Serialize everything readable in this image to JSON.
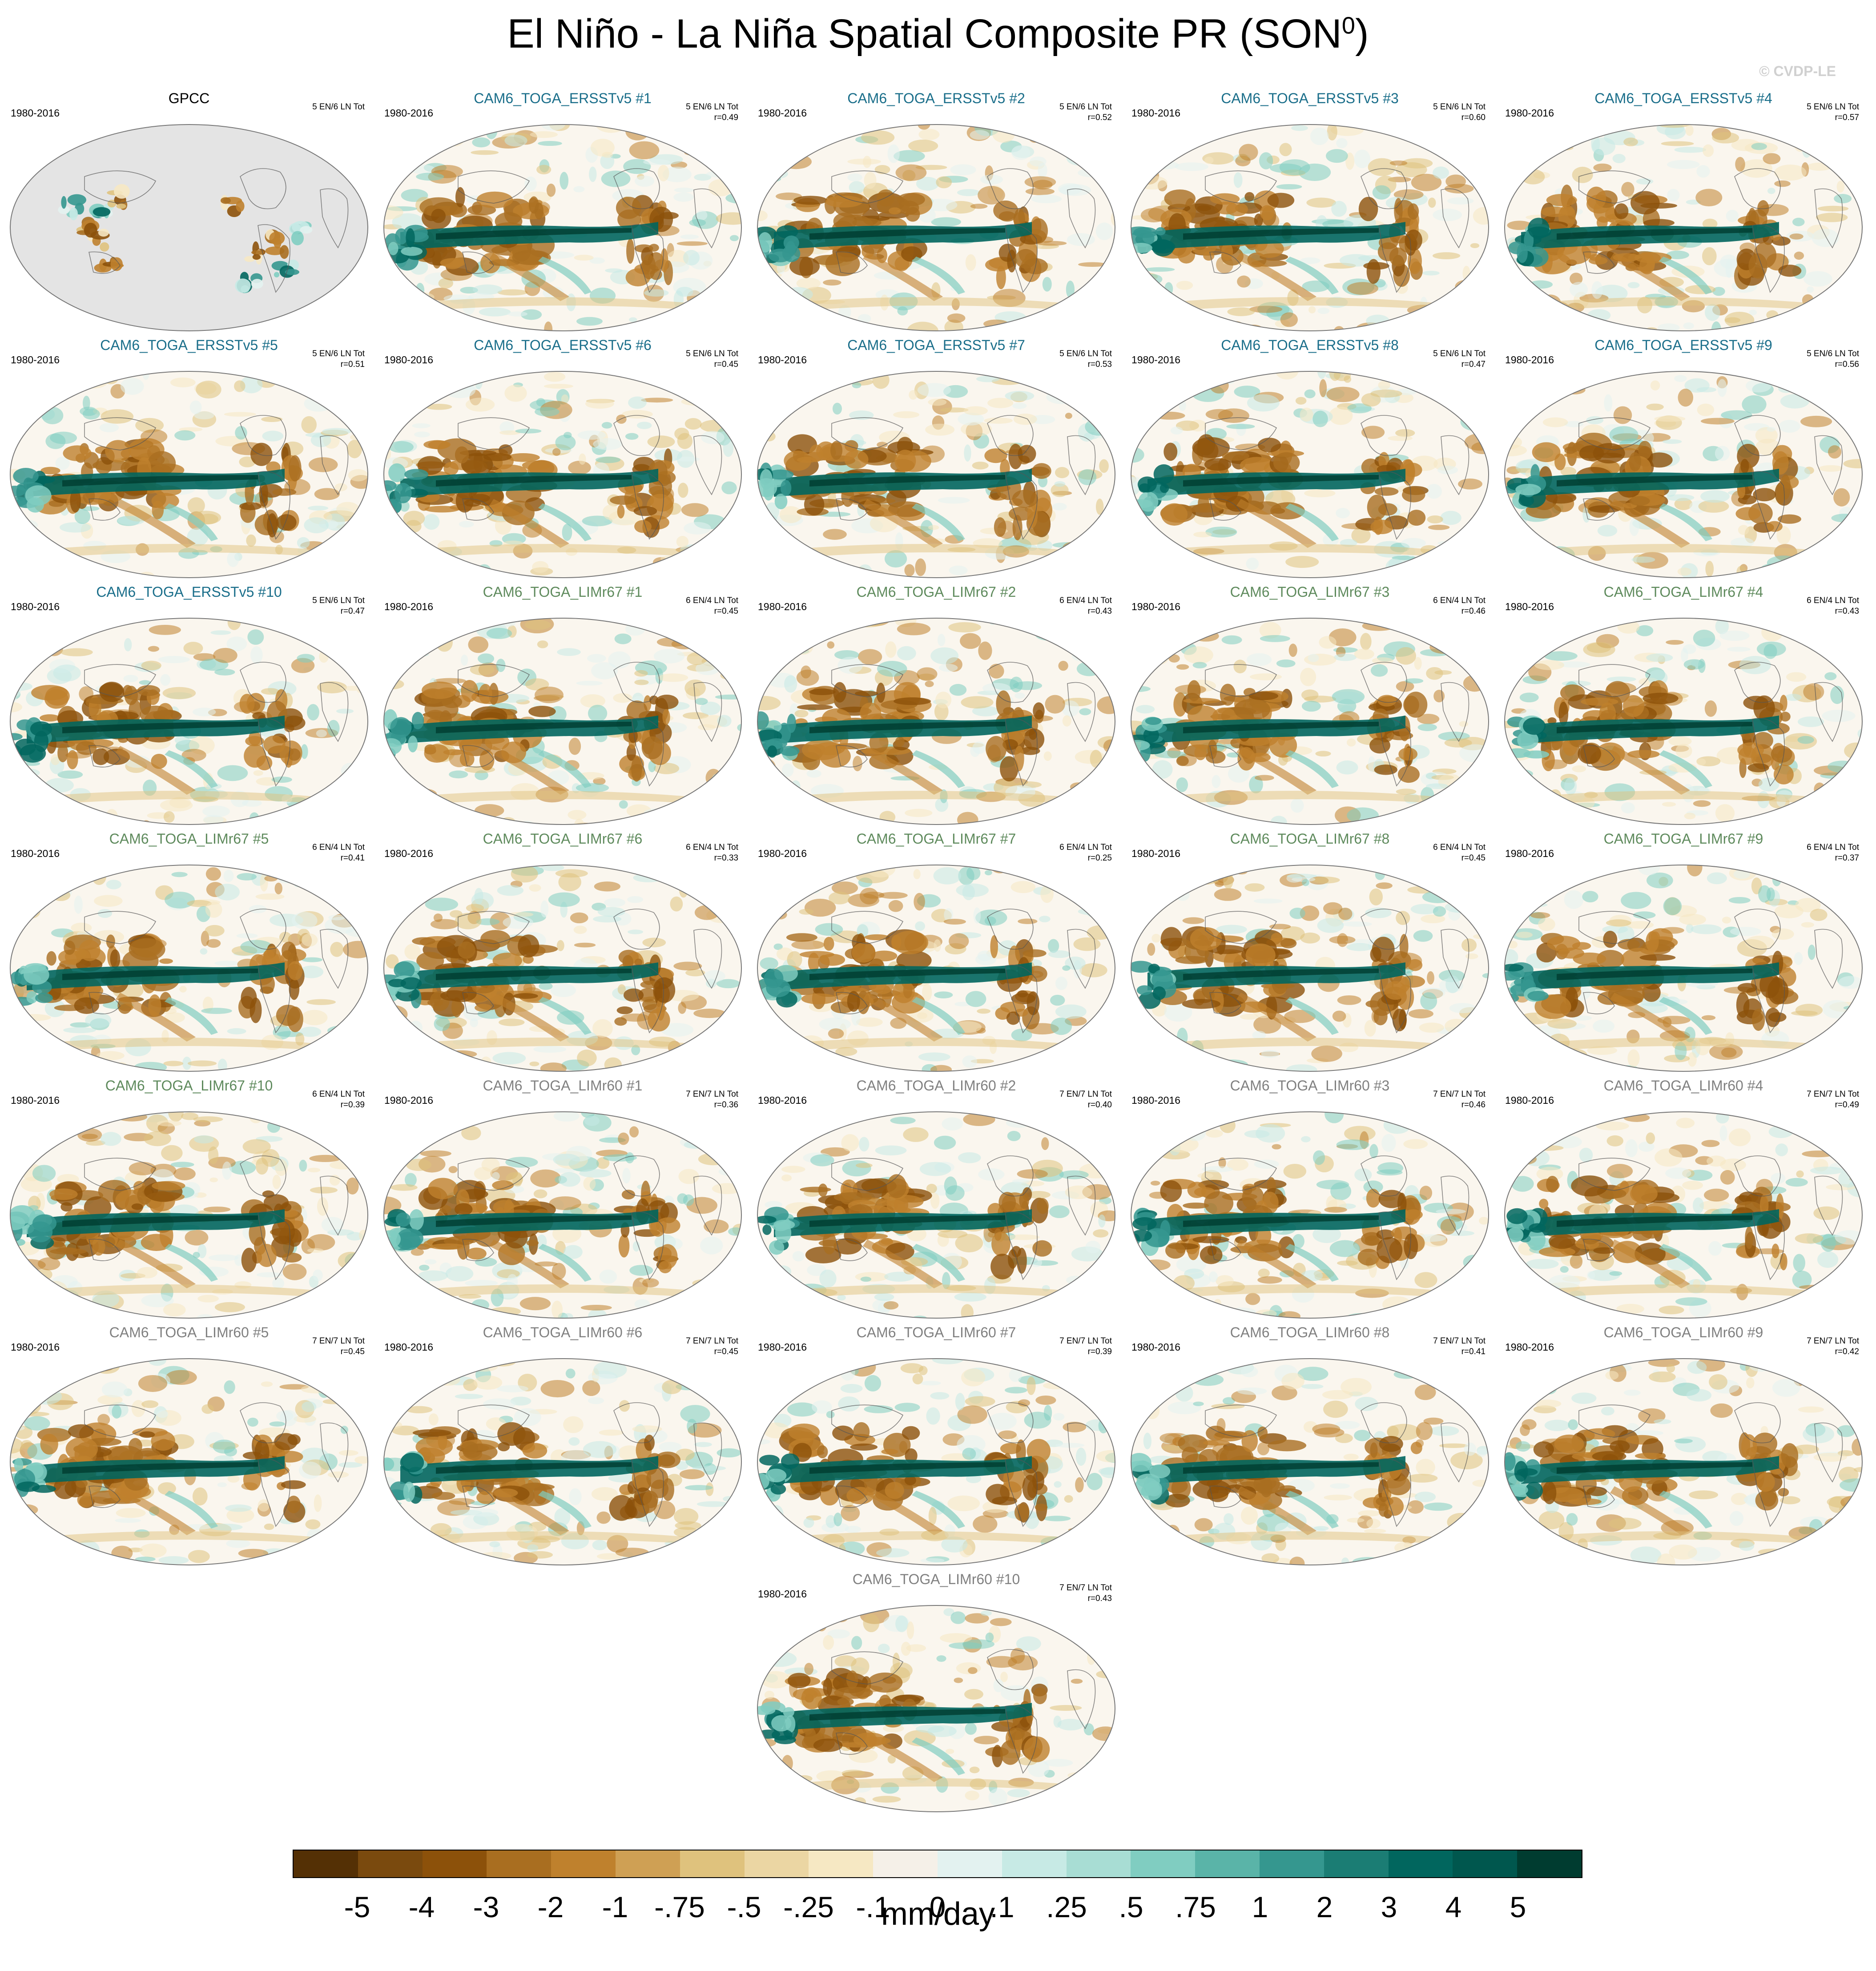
{
  "page_title": "El Niño - La Niña Spatial Composite PR (SON",
  "page_title_sup": "0",
  "page_title_close": ")",
  "credit": "© CVDP-LE",
  "chart_data": {
    "type": "heatmap",
    "title": "El Niño - La Niña Spatial Composite PR (SON0)",
    "projection": "Robinson-like global map, Pacific-centered",
    "units": "mm/day",
    "colorbar": {
      "labels": [
        "-5",
        "-4",
        "-3",
        "-2",
        "-1",
        "-.75",
        "-.5",
        "-.25",
        "-.1",
        "0",
        ".1",
        ".25",
        ".5",
        ".75",
        "1",
        "2",
        "3",
        "4",
        "5"
      ],
      "colors": [
        "#543005",
        "#7a4a0e",
        "#8c510a",
        "#a96e20",
        "#bf812d",
        "#cfa054",
        "#dfc27d",
        "#ebd6a3",
        "#f6e8c3",
        "#f5f0e8",
        "#e3f2f0",
        "#c7eae5",
        "#a8ddd4",
        "#80cdc1",
        "#5ab4a8",
        "#35978f",
        "#1b7d74",
        "#01665e",
        "#00574e",
        "#003c30"
      ]
    },
    "panels": [
      {
        "name": "GPCC",
        "years": "1980-2016",
        "events": "5 EN/6 LN Tot",
        "r": "",
        "color": "#000000",
        "obs": true
      },
      {
        "name": "CAM6_TOGA_ERSSTv5 #1",
        "years": "1980-2016",
        "events": "5 EN/6 LN Tot",
        "r": "r=0.49",
        "color": "#1a6e8a"
      },
      {
        "name": "CAM6_TOGA_ERSSTv5 #2",
        "years": "1980-2016",
        "events": "5 EN/6 LN Tot",
        "r": "r=0.52",
        "color": "#1a6e8a"
      },
      {
        "name": "CAM6_TOGA_ERSSTv5 #3",
        "years": "1980-2016",
        "events": "5 EN/6 LN Tot",
        "r": "r=0.60",
        "color": "#1a6e8a"
      },
      {
        "name": "CAM6_TOGA_ERSSTv5 #4",
        "years": "1980-2016",
        "events": "5 EN/6 LN Tot",
        "r": "r=0.57",
        "color": "#1a6e8a"
      },
      {
        "name": "CAM6_TOGA_ERSSTv5 #5",
        "years": "1980-2016",
        "events": "5 EN/6 LN Tot",
        "r": "r=0.51",
        "color": "#1a6e8a"
      },
      {
        "name": "CAM6_TOGA_ERSSTv5 #6",
        "years": "1980-2016",
        "events": "5 EN/6 LN Tot",
        "r": "r=0.45",
        "color": "#1a6e8a"
      },
      {
        "name": "CAM6_TOGA_ERSSTv5 #7",
        "years": "1980-2016",
        "events": "5 EN/6 LN Tot",
        "r": "r=0.53",
        "color": "#1a6e8a"
      },
      {
        "name": "CAM6_TOGA_ERSSTv5 #8",
        "years": "1980-2016",
        "events": "5 EN/6 LN Tot",
        "r": "r=0.47",
        "color": "#1a6e8a"
      },
      {
        "name": "CAM6_TOGA_ERSSTv5 #9",
        "years": "1980-2016",
        "events": "5 EN/6 LN Tot",
        "r": "r=0.56",
        "color": "#1a6e8a"
      },
      {
        "name": "CAM6_TOGA_ERSSTv5 #10",
        "years": "1980-2016",
        "events": "5 EN/6 LN Tot",
        "r": "r=0.47",
        "color": "#1a6e8a"
      },
      {
        "name": "CAM6_TOGA_LIMr67 #1",
        "years": "1980-2016",
        "events": "6 EN/4 LN Tot",
        "r": "r=0.45",
        "color": "#5e8a5c"
      },
      {
        "name": "CAM6_TOGA_LIMr67 #2",
        "years": "1980-2016",
        "events": "6 EN/4 LN Tot",
        "r": "r=0.43",
        "color": "#5e8a5c"
      },
      {
        "name": "CAM6_TOGA_LIMr67 #3",
        "years": "1980-2016",
        "events": "6 EN/4 LN Tot",
        "r": "r=0.46",
        "color": "#5e8a5c"
      },
      {
        "name": "CAM6_TOGA_LIMr67 #4",
        "years": "1980-2016",
        "events": "6 EN/4 LN Tot",
        "r": "r=0.43",
        "color": "#5e8a5c"
      },
      {
        "name": "CAM6_TOGA_LIMr67 #5",
        "years": "1980-2016",
        "events": "6 EN/4 LN Tot",
        "r": "r=0.41",
        "color": "#5e8a5c"
      },
      {
        "name": "CAM6_TOGA_LIMr67 #6",
        "years": "1980-2016",
        "events": "6 EN/4 LN Tot",
        "r": "r=0.33",
        "color": "#5e8a5c"
      },
      {
        "name": "CAM6_TOGA_LIMr67 #7",
        "years": "1980-2016",
        "events": "6 EN/4 LN Tot",
        "r": "r=0.25",
        "color": "#5e8a5c"
      },
      {
        "name": "CAM6_TOGA_LIMr67 #8",
        "years": "1980-2016",
        "events": "6 EN/4 LN Tot",
        "r": "r=0.45",
        "color": "#5e8a5c"
      },
      {
        "name": "CAM6_TOGA_LIMr67 #9",
        "years": "1980-2016",
        "events": "6 EN/4 LN Tot",
        "r": "r=0.37",
        "color": "#5e8a5c"
      },
      {
        "name": "CAM6_TOGA_LIMr67 #10",
        "years": "1980-2016",
        "events": "6 EN/4 LN Tot",
        "r": "r=0.39",
        "color": "#5e8a5c"
      },
      {
        "name": "CAM6_TOGA_LIMr60 #1",
        "years": "1980-2016",
        "events": "7 EN/7 LN Tot",
        "r": "r=0.36",
        "color": "#808080"
      },
      {
        "name": "CAM6_TOGA_LIMr60 #2",
        "years": "1980-2016",
        "events": "7 EN/7 LN Tot",
        "r": "r=0.40",
        "color": "#808080"
      },
      {
        "name": "CAM6_TOGA_LIMr60 #3",
        "years": "1980-2016",
        "events": "7 EN/7 LN Tot",
        "r": "r=0.46",
        "color": "#808080"
      },
      {
        "name": "CAM6_TOGA_LIMr60 #4",
        "years": "1980-2016",
        "events": "7 EN/7 LN Tot",
        "r": "r=0.49",
        "color": "#808080"
      },
      {
        "name": "CAM6_TOGA_LIMr60 #5",
        "years": "1980-2016",
        "events": "7 EN/7 LN Tot",
        "r": "r=0.45",
        "color": "#808080"
      },
      {
        "name": "CAM6_TOGA_LIMr60 #6",
        "years": "1980-2016",
        "events": "7 EN/7 LN Tot",
        "r": "r=0.45",
        "color": "#808080"
      },
      {
        "name": "CAM6_TOGA_LIMr60 #7",
        "years": "1980-2016",
        "events": "7 EN/7 LN Tot",
        "r": "r=0.39",
        "color": "#808080"
      },
      {
        "name": "CAM6_TOGA_LIMr60 #8",
        "years": "1980-2016",
        "events": "7 EN/7 LN Tot",
        "r": "r=0.41",
        "color": "#808080"
      },
      {
        "name": "CAM6_TOGA_LIMr60 #9",
        "years": "1980-2016",
        "events": "7 EN/7 LN Tot",
        "r": "r=0.42",
        "color": "#808080"
      },
      {
        "name": "CAM6_TOGA_LIMr60 #10",
        "years": "1980-2016",
        "events": "7 EN/7 LN Tot",
        "r": "r=0.43",
        "color": "#808080"
      }
    ]
  }
}
